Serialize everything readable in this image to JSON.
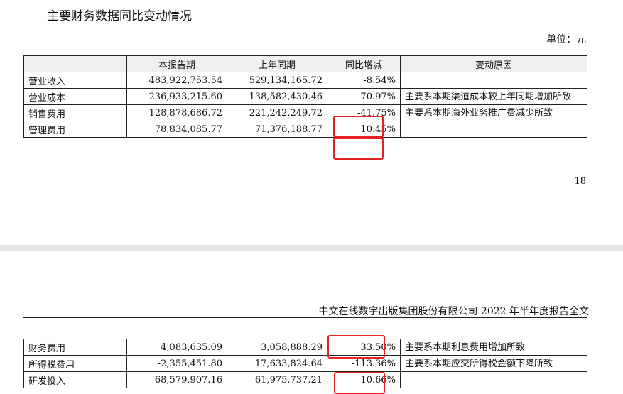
{
  "title": "主要财务数据同比变动情况",
  "unit": "单位：元",
  "headers": [
    "",
    "本报告期",
    "上年同期",
    "同比增减",
    "变动原因"
  ],
  "rows_top": [
    {
      "item": "营业收入",
      "current": "483,922,753.54",
      "prior": "529,134,165.72",
      "change": "-8.54%",
      "reason": ""
    },
    {
      "item": "营业成本",
      "current": "236,933,215.60",
      "prior": "138,582,430.46",
      "change": "70.97%",
      "reason": "主要系本期渠道成本较上年同期增加所致"
    },
    {
      "item": "销售费用",
      "current": "128,878,686.72",
      "prior": "221,242,249.72",
      "change": "-41.75%",
      "reason": "主要系本期海外业务推广费减少所致"
    },
    {
      "item": "管理费用",
      "current": "78,834,085.77",
      "prior": "71,376,188.77",
      "change": "10.45%",
      "reason": ""
    }
  ],
  "page_number": "18",
  "running_header": "中文在线数字出版集团股份有限公司 2022 年半年度报告全文",
  "rows_bottom": [
    {
      "item": "财务费用",
      "current": "4,083,635.09",
      "prior": "3,058,888.29",
      "change": "33.50%",
      "reason": "主要系本期利息费用增加所致"
    },
    {
      "item": "所得税费用",
      "current": "-2,355,451.80",
      "prior": "17,633,824.64",
      "change": "-113.36%",
      "reason": "主要系本期应交所得税金额下降所致"
    },
    {
      "item": "研发投入",
      "current": "68,579,907.16",
      "prior": "61,975,737.21",
      "change": "10.66%",
      "reason": ""
    }
  ],
  "highlight_color": "#e32222"
}
